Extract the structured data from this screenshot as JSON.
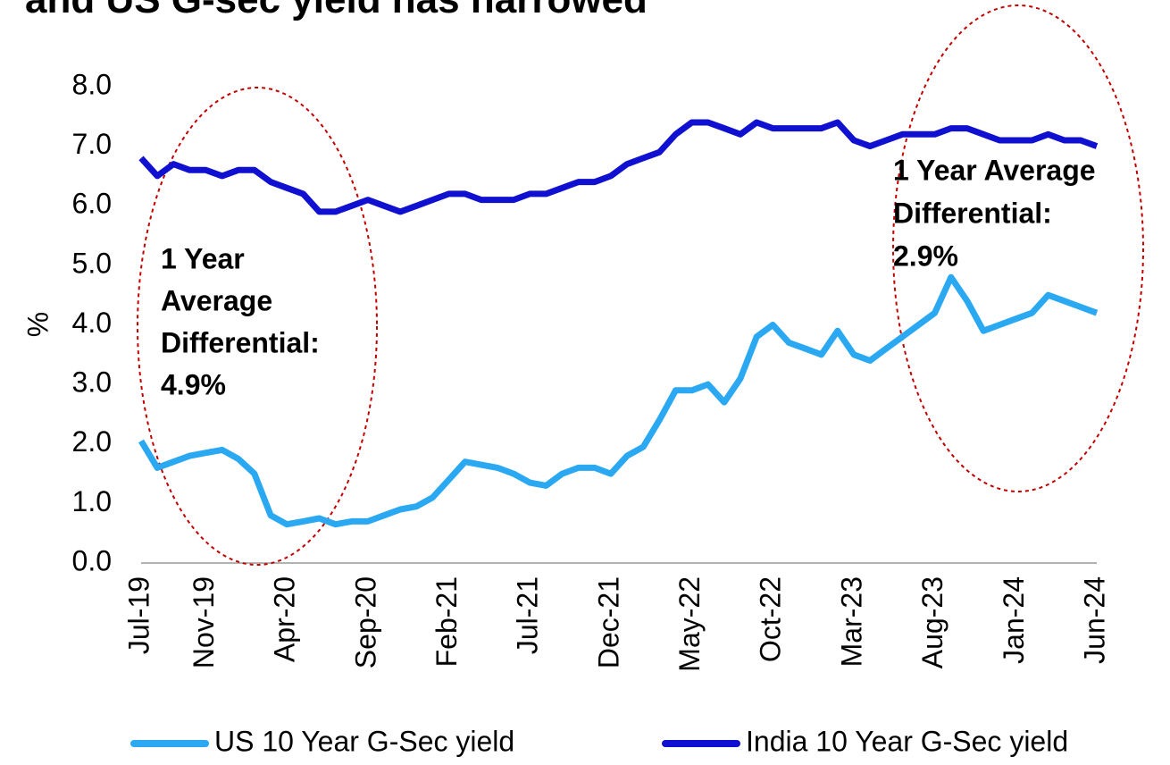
{
  "chart_data": {
    "type": "line",
    "title": "and US G-sec yield has narrowed",
    "ylabel": "%",
    "categories": [
      "Jul-19",
      null,
      null,
      null,
      "Nov-19",
      null,
      null,
      null,
      null,
      "Apr-20",
      null,
      null,
      null,
      null,
      "Sep-20",
      null,
      null,
      null,
      null,
      "Feb-21",
      null,
      null,
      null,
      null,
      "Jul-21",
      null,
      null,
      null,
      null,
      "Dec-21",
      null,
      null,
      null,
      null,
      "May-22",
      null,
      null,
      null,
      null,
      "Oct-22",
      null,
      null,
      null,
      null,
      "Mar-23",
      null,
      null,
      null,
      null,
      "Aug-23",
      null,
      null,
      null,
      null,
      "Jan-24",
      null,
      null,
      null,
      null,
      "Jun-24"
    ],
    "series": [
      {
        "name": "US 10 Year G-Sec yield",
        "color": "#2aa8f2",
        "values": [
          2.05,
          1.6,
          1.7,
          1.8,
          1.85,
          1.9,
          1.75,
          1.5,
          0.8,
          0.65,
          0.7,
          0.75,
          0.65,
          0.7,
          0.7,
          0.8,
          0.9,
          0.95,
          1.1,
          1.4,
          1.7,
          1.65,
          1.6,
          1.5,
          1.35,
          1.3,
          1.5,
          1.6,
          1.6,
          1.5,
          1.8,
          1.95,
          2.4,
          2.9,
          2.9,
          3.0,
          2.7,
          3.1,
          3.8,
          4.0,
          3.7,
          3.6,
          3.5,
          3.9,
          3.5,
          3.4,
          3.6,
          3.8,
          4.0,
          4.2,
          4.8,
          4.4,
          3.9,
          4.0,
          4.1,
          4.2,
          4.5,
          4.4,
          4.3,
          4.2
        ]
      },
      {
        "name": "India 10 Year G-Sec yield",
        "color": "#1010d0",
        "values": [
          6.8,
          6.5,
          6.7,
          6.6,
          6.6,
          6.5,
          6.6,
          6.6,
          6.4,
          6.3,
          6.2,
          5.9,
          5.9,
          6.0,
          6.1,
          6.0,
          5.9,
          6.0,
          6.1,
          6.2,
          6.2,
          6.1,
          6.1,
          6.1,
          6.2,
          6.2,
          6.3,
          6.4,
          6.4,
          6.5,
          6.7,
          6.8,
          6.9,
          7.2,
          7.4,
          7.4,
          7.3,
          7.2,
          7.4,
          7.3,
          7.3,
          7.3,
          7.3,
          7.4,
          7.1,
          7.0,
          7.1,
          7.2,
          7.2,
          7.2,
          7.3,
          7.3,
          7.2,
          7.1,
          7.1,
          7.1,
          7.2,
          7.1,
          7.1,
          7.0
        ]
      }
    ],
    "ylim": [
      0,
      8
    ],
    "yticks": [
      {
        "value": 0,
        "label": "0.0"
      },
      {
        "value": 1,
        "label": "1.0"
      },
      {
        "value": 2,
        "label": "2.0"
      },
      {
        "value": 3,
        "label": "3.0"
      },
      {
        "value": 4,
        "label": "4.0"
      },
      {
        "value": 5,
        "label": "5.0"
      },
      {
        "value": 6,
        "label": "6.0"
      },
      {
        "value": 7,
        "label": "7.0"
      },
      {
        "value": 8,
        "label": "8.0"
      }
    ],
    "grid": false,
    "legend": "bottom",
    "annotations": [
      {
        "lines": [
          "1 Year",
          "Average",
          "Differential:",
          "4.9%"
        ]
      },
      {
        "lines": [
          "1 Year Average",
          "Differential:",
          "2.9%"
        ]
      }
    ]
  }
}
